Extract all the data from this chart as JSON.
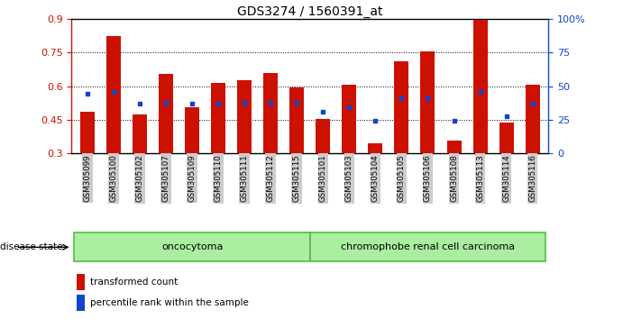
{
  "title": "GDS3274 / 1560391_at",
  "samples": [
    "GSM305099",
    "GSM305100",
    "GSM305102",
    "GSM305107",
    "GSM305109",
    "GSM305110",
    "GSM305111",
    "GSM305112",
    "GSM305115",
    "GSM305101",
    "GSM305103",
    "GSM305104",
    "GSM305105",
    "GSM305106",
    "GSM305108",
    "GSM305113",
    "GSM305114",
    "GSM305116"
  ],
  "red_values": [
    0.485,
    0.825,
    0.475,
    0.655,
    0.505,
    0.615,
    0.625,
    0.66,
    0.595,
    0.455,
    0.605,
    0.345,
    0.71,
    0.755,
    0.355,
    0.895,
    0.435,
    0.605
  ],
  "blue_values": [
    0.565,
    0.575,
    0.52,
    0.525,
    0.52,
    0.52,
    0.525,
    0.525,
    0.525,
    0.485,
    0.505,
    0.445,
    0.545,
    0.545,
    0.445,
    0.575,
    0.465,
    0.52
  ],
  "bar_bottom": 0.3,
  "ylim_left": [
    0.3,
    0.9
  ],
  "ylim_right": [
    0,
    100
  ],
  "yticks_left": [
    0.3,
    0.45,
    0.6,
    0.75,
    0.9
  ],
  "ytick_labels_left": [
    "0.3",
    "0.45",
    "0.6",
    "0.75",
    "0.9"
  ],
  "yticks_right": [
    0,
    25,
    50,
    75,
    100
  ],
  "ytick_labels_right": [
    "0",
    "25",
    "50",
    "75",
    "100%"
  ],
  "red_color": "#CC1100",
  "blue_color": "#1144CC",
  "bar_width": 0.55,
  "group1_label": "oncocytoma",
  "group2_label": "chromophobe renal cell carcinoma",
  "disease_label": "disease state",
  "group1_count": 9,
  "group2_count": 9,
  "legend_red": "transformed count",
  "legend_blue": "percentile rank within the sample",
  "group_fill": "#AAEEA0",
  "group_border": "#55BB44",
  "tick_bg": "#CCCCCC",
  "bg_color": "#FFFFFF"
}
